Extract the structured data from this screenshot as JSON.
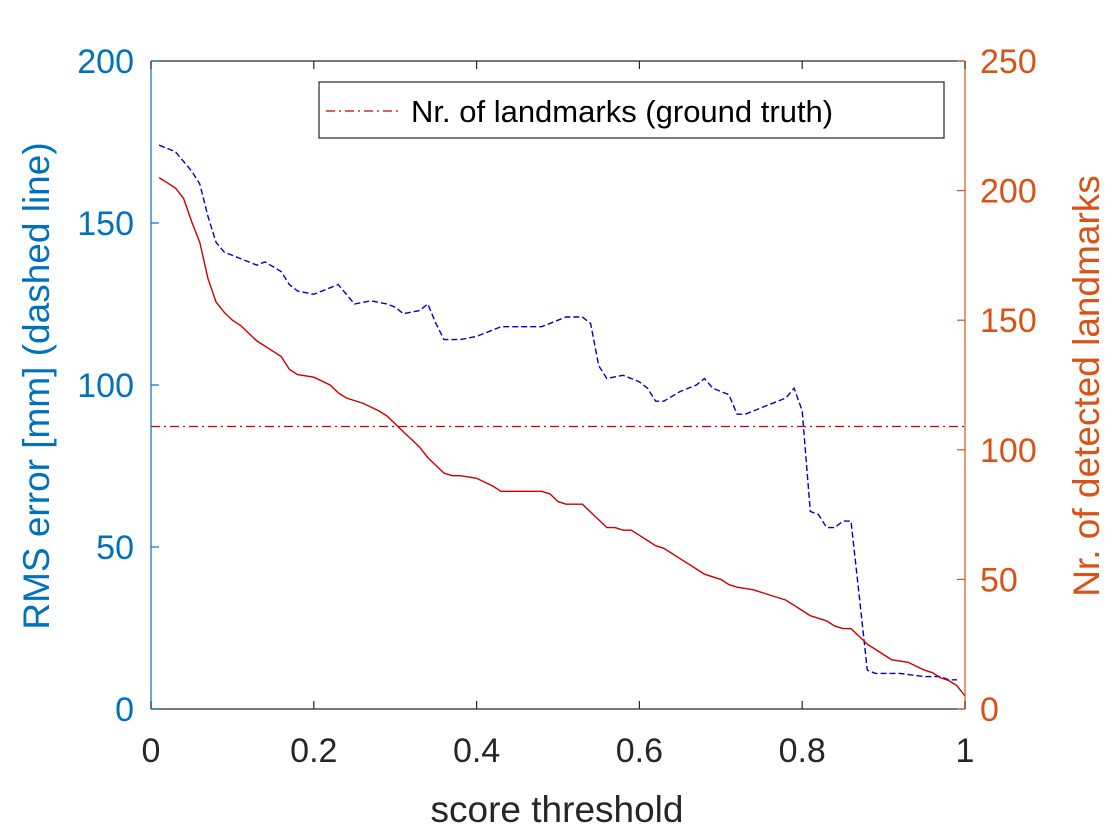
{
  "chart_data": {
    "type": "line",
    "xlabel": "score threshold",
    "ylabel_left": "RMS error [mm] (dashed line)",
    "ylabel_right": "Nr. of detected landmarks",
    "xlim": [
      0,
      1
    ],
    "ylim_left": [
      0,
      200
    ],
    "ylim_right": [
      0,
      250
    ],
    "x_ticks": [
      "0",
      "0.2",
      "0.4",
      "0.6",
      "0.8",
      "1"
    ],
    "y_left_ticks": [
      "0",
      "50",
      "100",
      "150",
      "200"
    ],
    "y_right_ticks": [
      "0",
      "50",
      "100",
      "150",
      "200",
      "250"
    ],
    "grid": false,
    "legend": {
      "placement": "top-right",
      "entries": [
        "Nr. of landmarks (ground truth)"
      ]
    },
    "colors": {
      "left_axis": "#0072BD",
      "right_axis": "#D95319",
      "rms_line": "#0000CC",
      "detected_line": "#CC0000",
      "ground_truth_line": "#CC0000"
    },
    "series": [
      {
        "axis": "left",
        "style": "dashed",
        "points": [
          [
            0.01,
            174
          ],
          [
            0.03,
            172
          ],
          [
            0.05,
            166
          ],
          [
            0.06,
            162
          ],
          [
            0.07,
            152
          ],
          [
            0.08,
            144
          ],
          [
            0.09,
            141
          ],
          [
            0.1,
            140
          ],
          [
            0.12,
            138
          ],
          [
            0.13,
            137
          ],
          [
            0.14,
            138
          ],
          [
            0.16,
            135
          ],
          [
            0.17,
            131
          ],
          [
            0.18,
            129
          ],
          [
            0.2,
            128
          ],
          [
            0.22,
            130
          ],
          [
            0.23,
            131
          ],
          [
            0.24,
            128
          ],
          [
            0.25,
            125
          ],
          [
            0.27,
            126
          ],
          [
            0.29,
            125
          ],
          [
            0.3,
            124
          ],
          [
            0.31,
            122
          ],
          [
            0.33,
            123
          ],
          [
            0.34,
            125
          ],
          [
            0.35,
            119
          ],
          [
            0.36,
            114
          ],
          [
            0.38,
            114
          ],
          [
            0.4,
            115
          ],
          [
            0.41,
            116
          ],
          [
            0.43,
            118
          ],
          [
            0.45,
            118
          ],
          [
            0.48,
            118
          ],
          [
            0.5,
            120
          ],
          [
            0.51,
            121
          ],
          [
            0.53,
            121
          ],
          [
            0.54,
            119
          ],
          [
            0.55,
            106
          ],
          [
            0.56,
            102
          ],
          [
            0.58,
            103
          ],
          [
            0.6,
            101
          ],
          [
            0.61,
            99
          ],
          [
            0.62,
            95
          ],
          [
            0.63,
            95
          ],
          [
            0.65,
            98
          ],
          [
            0.67,
            100
          ],
          [
            0.68,
            102
          ],
          [
            0.69,
            99
          ],
          [
            0.7,
            98
          ],
          [
            0.71,
            97
          ],
          [
            0.72,
            91
          ],
          [
            0.73,
            91
          ],
          [
            0.75,
            93
          ],
          [
            0.77,
            95
          ],
          [
            0.78,
            96
          ],
          [
            0.79,
            99
          ],
          [
            0.8,
            92
          ],
          [
            0.81,
            61
          ],
          [
            0.82,
            60
          ],
          [
            0.83,
            56
          ],
          [
            0.84,
            56
          ],
          [
            0.85,
            58
          ],
          [
            0.86,
            58
          ],
          [
            0.87,
            35
          ],
          [
            0.88,
            12
          ],
          [
            0.89,
            11
          ],
          [
            0.92,
            11
          ],
          [
            0.95,
            10
          ],
          [
            0.97,
            10
          ],
          [
            0.98,
            9
          ],
          [
            0.99,
            9
          ]
        ]
      },
      {
        "axis": "right",
        "style": "solid",
        "points": [
          [
            0.01,
            205
          ],
          [
            0.02,
            203
          ],
          [
            0.03,
            201
          ],
          [
            0.04,
            197
          ],
          [
            0.05,
            188
          ],
          [
            0.06,
            180
          ],
          [
            0.07,
            166
          ],
          [
            0.08,
            157
          ],
          [
            0.09,
            153
          ],
          [
            0.1,
            150
          ],
          [
            0.11,
            148
          ],
          [
            0.12,
            145
          ],
          [
            0.13,
            142
          ],
          [
            0.15,
            138
          ],
          [
            0.16,
            136
          ],
          [
            0.17,
            131
          ],
          [
            0.18,
            129
          ],
          [
            0.2,
            128
          ],
          [
            0.22,
            125
          ],
          [
            0.23,
            122
          ],
          [
            0.24,
            120
          ],
          [
            0.26,
            118
          ],
          [
            0.28,
            115
          ],
          [
            0.29,
            113
          ],
          [
            0.3,
            110
          ],
          [
            0.31,
            107
          ],
          [
            0.32,
            104
          ],
          [
            0.33,
            101
          ],
          [
            0.34,
            97
          ],
          [
            0.35,
            94
          ],
          [
            0.36,
            91
          ],
          [
            0.37,
            90
          ],
          [
            0.38,
            90
          ],
          [
            0.4,
            89
          ],
          [
            0.42,
            86
          ],
          [
            0.43,
            84
          ],
          [
            0.45,
            84
          ],
          [
            0.48,
            84
          ],
          [
            0.49,
            83
          ],
          [
            0.5,
            80
          ],
          [
            0.51,
            79
          ],
          [
            0.52,
            79
          ],
          [
            0.53,
            79
          ],
          [
            0.54,
            76
          ],
          [
            0.55,
            73
          ],
          [
            0.56,
            70
          ],
          [
            0.57,
            70
          ],
          [
            0.58,
            69
          ],
          [
            0.59,
            69
          ],
          [
            0.6,
            67
          ],
          [
            0.61,
            65
          ],
          [
            0.62,
            63
          ],
          [
            0.63,
            62
          ],
          [
            0.64,
            60
          ],
          [
            0.65,
            58
          ],
          [
            0.66,
            56
          ],
          [
            0.67,
            54
          ],
          [
            0.68,
            52
          ],
          [
            0.7,
            50
          ],
          [
            0.71,
            48
          ],
          [
            0.72,
            47
          ],
          [
            0.74,
            46
          ],
          [
            0.76,
            44
          ],
          [
            0.78,
            42
          ],
          [
            0.79,
            40
          ],
          [
            0.8,
            38
          ],
          [
            0.81,
            36
          ],
          [
            0.82,
            35
          ],
          [
            0.83,
            34
          ],
          [
            0.84,
            32
          ],
          [
            0.85,
            31
          ],
          [
            0.86,
            31
          ],
          [
            0.87,
            28
          ],
          [
            0.88,
            25
          ],
          [
            0.89,
            23
          ],
          [
            0.9,
            21
          ],
          [
            0.91,
            19
          ],
          [
            0.93,
            18
          ],
          [
            0.95,
            15
          ],
          [
            0.96,
            14
          ],
          [
            0.97,
            12
          ],
          [
            0.98,
            11
          ],
          [
            0.99,
            9
          ],
          [
            1.0,
            5
          ]
        ]
      },
      {
        "name": "Nr. of landmarks (ground truth)",
        "axis": "right",
        "style": "dash-dot",
        "points": [
          [
            0,
            109
          ],
          [
            1,
            109
          ]
        ]
      }
    ]
  }
}
